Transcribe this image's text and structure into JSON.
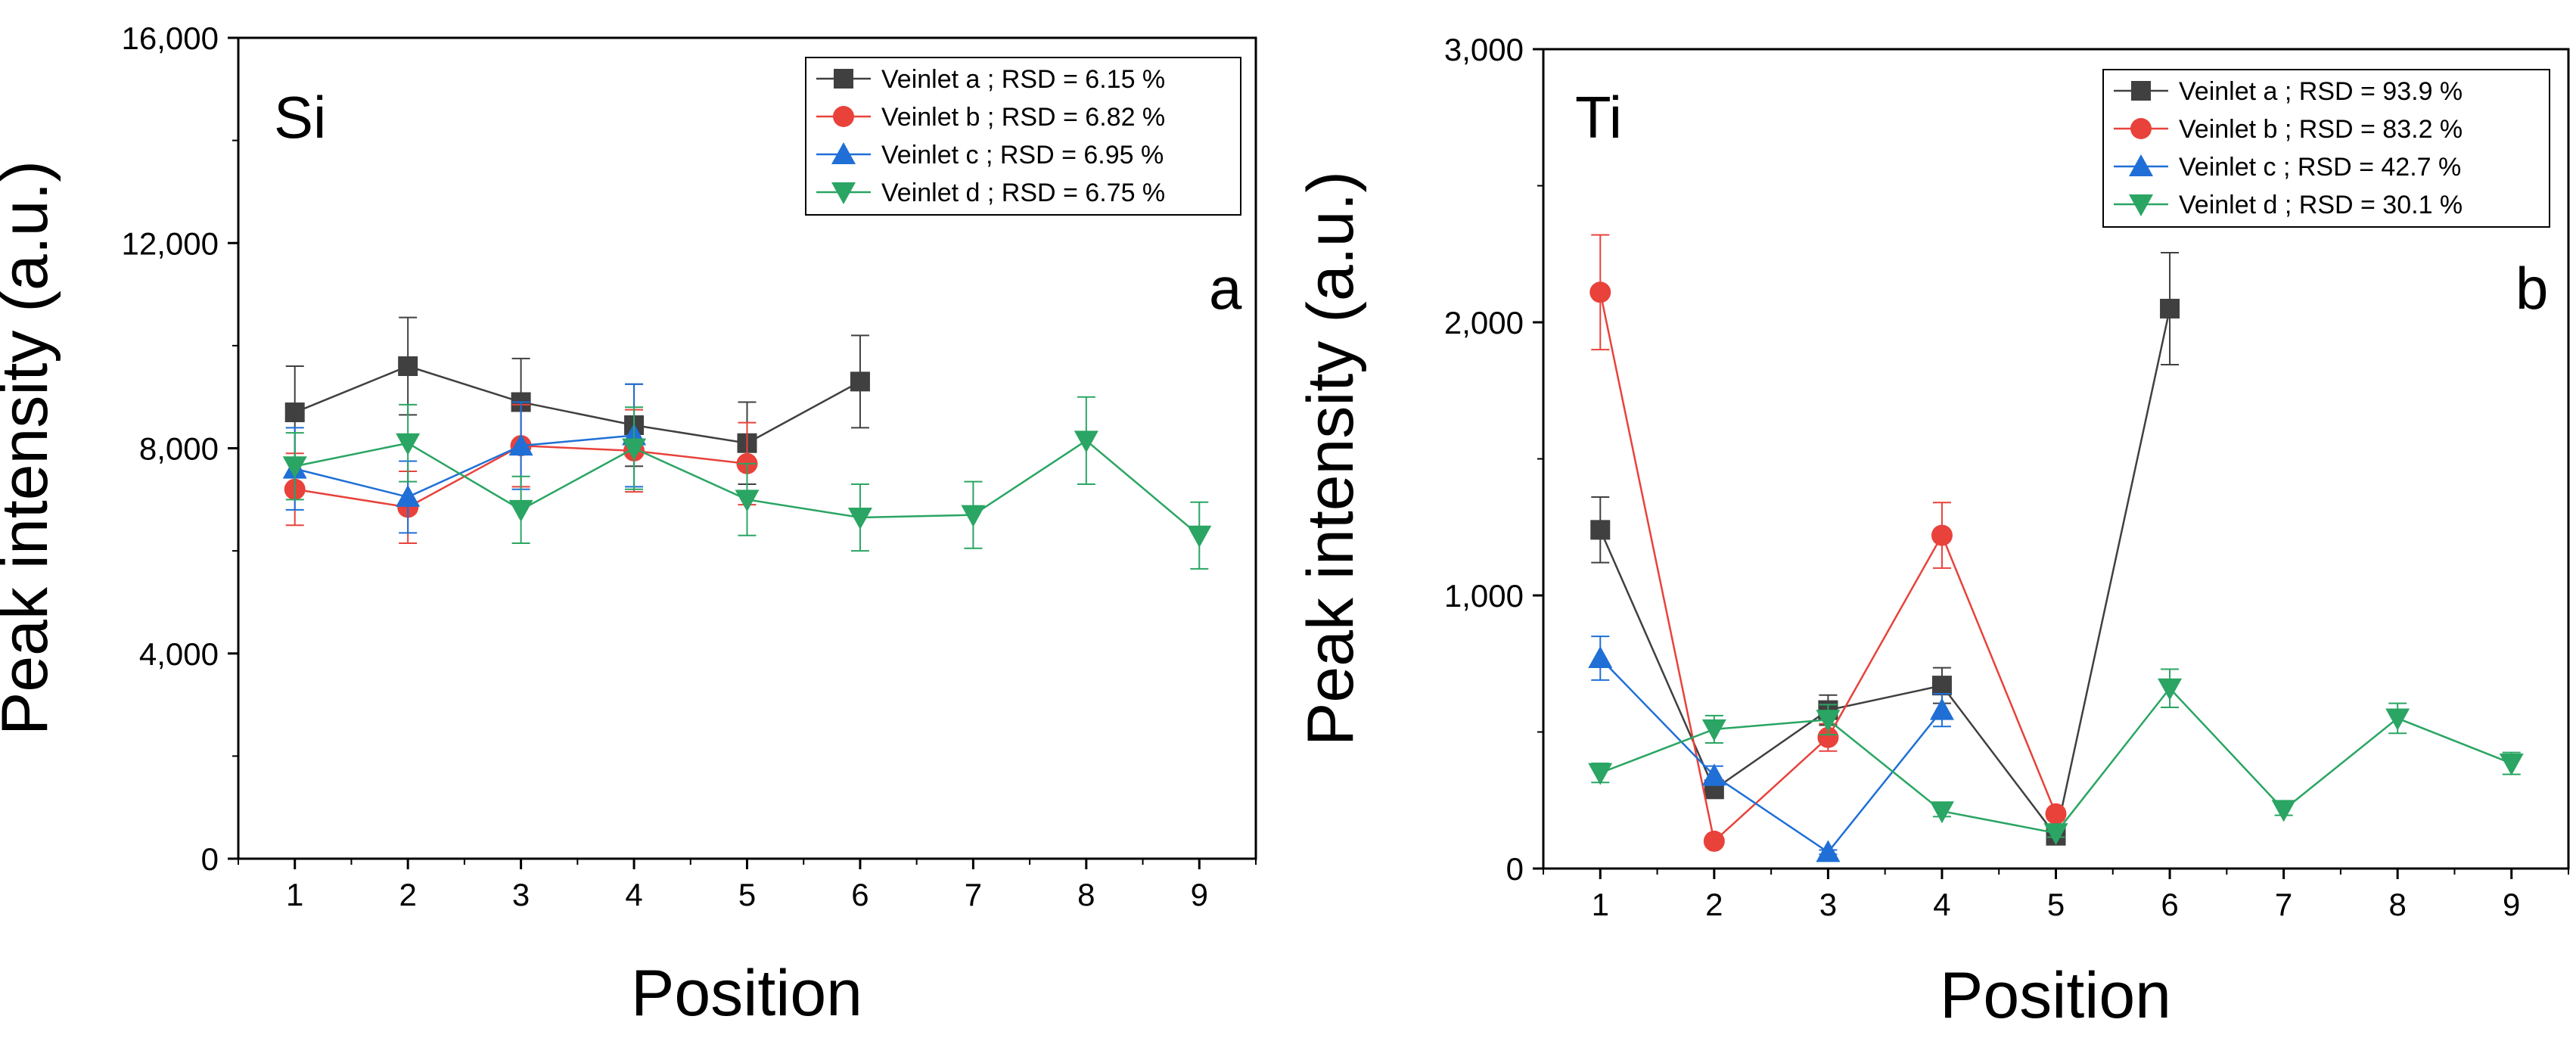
{
  "chart_data": [
    {
      "type": "line",
      "panel": "a",
      "element": "Si",
      "panel_letter": "a",
      "xlabel": "Position",
      "ylabel": "Peak intensity (a.u.)",
      "xlim": [
        0.5,
        9.5
      ],
      "ylim": [
        0,
        16000
      ],
      "xticks": [
        1,
        2,
        3,
        4,
        5,
        6,
        7,
        8,
        9
      ],
      "yticks": [
        0,
        4000,
        8000,
        12000,
        16000
      ],
      "ytick_labels": [
        "0",
        "4,000",
        "8,000",
        "12,000",
        "16,000"
      ],
      "legend_position": "top-right",
      "series": [
        {
          "name": "Veinlet a ; RSD = 6.15 %",
          "color": "#404040",
          "marker": "square",
          "x": [
            1,
            2,
            3,
            4,
            5,
            6
          ],
          "y": [
            8700,
            9600,
            8900,
            8450,
            8100,
            9300
          ],
          "err": [
            900,
            950,
            850,
            800,
            800,
            900
          ]
        },
        {
          "name": "Veinlet b ; RSD = 6.82 %",
          "color": "#e8423b",
          "marker": "circle",
          "x": [
            1,
            2,
            3,
            4,
            5
          ],
          "y": [
            7200,
            6850,
            8050,
            7950,
            7700
          ],
          "err": [
            700,
            700,
            800,
            800,
            800
          ]
        },
        {
          "name": "Veinlet c ; RSD = 6.95 %",
          "color": "#1f6fd6",
          "marker": "triangle-up",
          "x": [
            1,
            2,
            3,
            4
          ],
          "y": [
            7600,
            7050,
            8050,
            8250
          ],
          "err": [
            800,
            700,
            850,
            1000
          ]
        },
        {
          "name": "Veinlet d ; RSD = 6.75 %",
          "color": "#2aa563",
          "marker": "triangle-down",
          "x": [
            1,
            2,
            3,
            4,
            5,
            6,
            7,
            8,
            9
          ],
          "y": [
            7650,
            8100,
            6800,
            8000,
            7000,
            6650,
            6700,
            8150,
            6300
          ],
          "err": [
            650,
            750,
            650,
            800,
            700,
            650,
            650,
            850,
            650
          ]
        }
      ]
    },
    {
      "type": "line",
      "panel": "b",
      "element": "Ti",
      "panel_letter": "b",
      "xlabel": "Position",
      "ylabel": "Peak intensity (a.u.)",
      "xlim": [
        0.5,
        9.5
      ],
      "ylim": [
        0,
        3000
      ],
      "xticks": [
        1,
        2,
        3,
        4,
        5,
        6,
        7,
        8,
        9
      ],
      "yticks": [
        0,
        1000,
        2000,
        3000
      ],
      "ytick_labels": [
        "0",
        "1,000",
        "2,000",
        "3,000"
      ],
      "legend_position": "top-right",
      "series": [
        {
          "name": "Veinlet a ; RSD = 93.9 %",
          "color": "#404040",
          "marker": "square",
          "x": [
            1,
            2,
            3,
            4,
            5,
            6
          ],
          "y": [
            1240,
            290,
            580,
            670,
            120,
            2050
          ],
          "err": [
            120,
            30,
            55,
            65,
            15,
            205
          ]
        },
        {
          "name": "Veinlet b ; RSD = 83.2 %",
          "color": "#e8423b",
          "marker": "circle",
          "x": [
            1,
            2,
            3,
            4,
            5
          ],
          "y": [
            2110,
            100,
            480,
            1220,
            200
          ],
          "err": [
            210,
            10,
            50,
            120,
            20
          ]
        },
        {
          "name": "Veinlet c ; RSD = 42.7 %",
          "color": "#1f6fd6",
          "marker": "triangle-up",
          "x": [
            1,
            2,
            3,
            4
          ],
          "y": [
            770,
            340,
            60,
            580
          ],
          "err": [
            80,
            35,
            8,
            60
          ]
        },
        {
          "name": "Veinlet d ; RSD = 30.1 %",
          "color": "#2aa563",
          "marker": "triangle-down",
          "x": [
            1,
            2,
            3,
            4,
            5,
            6,
            7,
            8,
            9
          ],
          "y": [
            350,
            510,
            545,
            210,
            130,
            660,
            215,
            550,
            385
          ],
          "err": [
            35,
            50,
            55,
            20,
            15,
            70,
            20,
            55,
            40
          ]
        }
      ]
    }
  ]
}
